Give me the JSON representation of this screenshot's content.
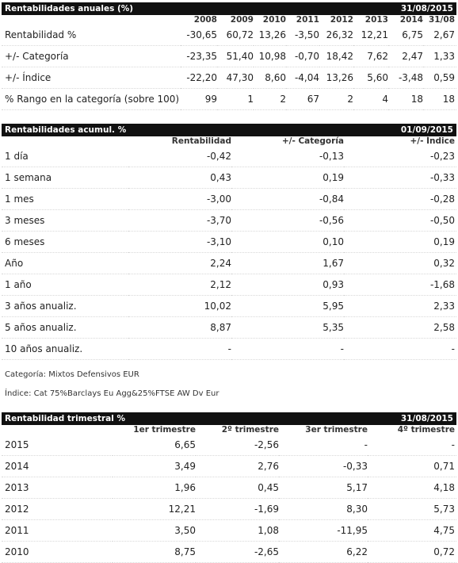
{
  "anual": {
    "title": "Rentabilidades anuales (%)",
    "date": "31/08/2015",
    "years": [
      "2008",
      "2009",
      "2010",
      "2011",
      "2012",
      "2013",
      "2014",
      "31/08"
    ],
    "rows": [
      {
        "label": "Rentabilidad %",
        "values": [
          "-30,65",
          "60,72",
          "13,26",
          "-3,50",
          "26,32",
          "12,21",
          "6,75",
          "2,67"
        ]
      },
      {
        "label": "+/- Categoría",
        "values": [
          "-23,35",
          "51,40",
          "10,98",
          "-0,70",
          "18,42",
          "7,62",
          "2,47",
          "1,33"
        ]
      },
      {
        "label": "+/- Índice",
        "values": [
          "-22,20",
          "47,30",
          "8,60",
          "-4,04",
          "13,26",
          "5,60",
          "-3,48",
          "0,59"
        ]
      },
      {
        "label": "% Rango en la categoría (sobre 100)",
        "values": [
          "99",
          "1",
          "2",
          "67",
          "2",
          "4",
          "18",
          "18"
        ]
      }
    ]
  },
  "acumul": {
    "title": "Rentabilidades acumul. %",
    "date": "01/09/2015",
    "headers": [
      "Rentabilidad",
      "+/- Categoría",
      "+/- Índice"
    ],
    "rows": [
      {
        "label": "1 día",
        "values": [
          "-0,42",
          "-0,13",
          "-0,23"
        ]
      },
      {
        "label": "1 semana",
        "values": [
          "0,43",
          "0,19",
          "-0,33"
        ]
      },
      {
        "label": "1 mes",
        "values": [
          "-3,00",
          "-0,84",
          "-0,28"
        ]
      },
      {
        "label": "3 meses",
        "values": [
          "-3,70",
          "-0,56",
          "-0,50"
        ]
      },
      {
        "label": "6 meses",
        "values": [
          "-3,10",
          "0,10",
          "0,19"
        ]
      },
      {
        "label": "Año",
        "values": [
          "2,24",
          "1,67",
          "0,32"
        ]
      },
      {
        "label": "1 año",
        "values": [
          "2,12",
          "0,93",
          "-1,68"
        ]
      },
      {
        "label": "3 años anualiz.",
        "values": [
          "10,02",
          "5,95",
          "2,33"
        ]
      },
      {
        "label": "5 años anualiz.",
        "values": [
          "8,87",
          "5,35",
          "2,58"
        ]
      },
      {
        "label": "10 años anualiz.",
        "values": [
          "-",
          "-",
          "-"
        ]
      }
    ]
  },
  "notes": {
    "categoria": "Categoría: Mixtos Defensivos EUR",
    "indice": "Índice: Cat 75%Barclays Eu Agg&25%FTSE AW Dv Eur"
  },
  "trimestral": {
    "title": "Rentabilidad trimestral %",
    "date": "31/08/2015",
    "headers": [
      "1er trimestre",
      "2º trimestre",
      "3er trimestre",
      "4º trimestre"
    ],
    "rows": [
      {
        "label": "2015",
        "values": [
          "6,65",
          "-2,56",
          "-",
          "-"
        ]
      },
      {
        "label": "2014",
        "values": [
          "3,49",
          "2,76",
          "-0,33",
          "0,71"
        ]
      },
      {
        "label": "2013",
        "values": [
          "1,96",
          "0,45",
          "5,17",
          "4,18"
        ]
      },
      {
        "label": "2012",
        "values": [
          "12,21",
          "-1,69",
          "8,30",
          "5,73"
        ]
      },
      {
        "label": "2011",
        "values": [
          "3,50",
          "1,08",
          "-11,95",
          "4,75"
        ]
      },
      {
        "label": "2010",
        "values": [
          "8,75",
          "-2,65",
          "6,22",
          "0,72"
        ]
      }
    ]
  }
}
